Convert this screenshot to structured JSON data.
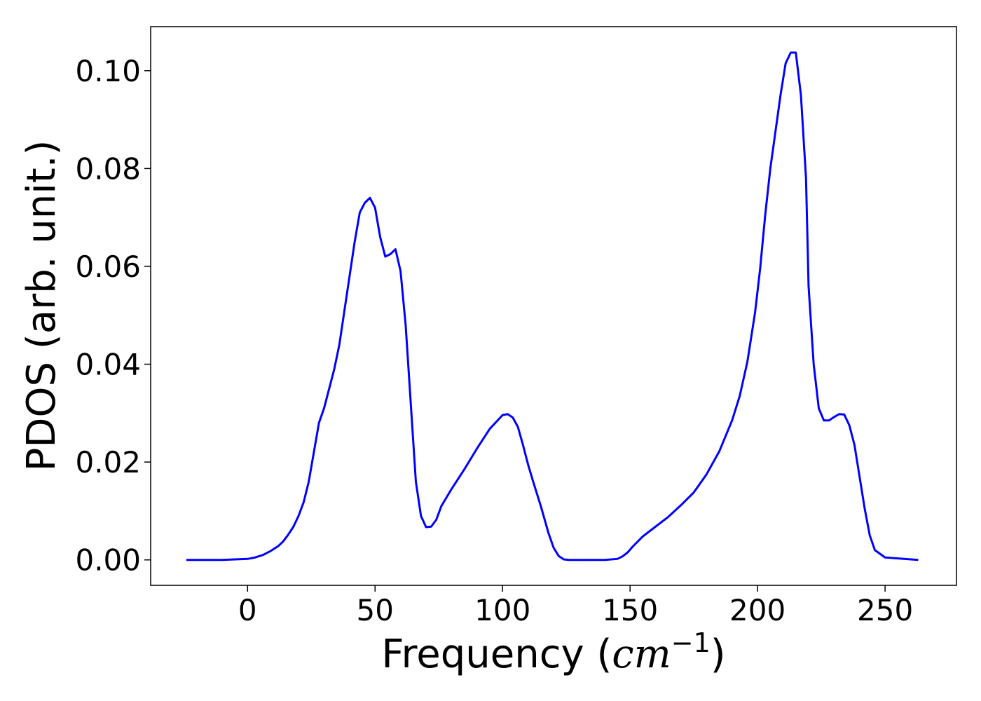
{
  "chart_data": {
    "type": "line",
    "xlabel": {
      "prefix": "Frequency (",
      "unit_base": "cm",
      "unit_exp": "−1",
      "suffix": ")"
    },
    "ylabel": "PDOS (arb. unit.)",
    "xlim": [
      -38,
      278
    ],
    "ylim": [
      -0.0052,
      0.109
    ],
    "x_ticks": [
      0,
      50,
      100,
      150,
      200,
      250
    ],
    "x_tick_labels": [
      "0",
      "50",
      "100",
      "150",
      "200",
      "250"
    ],
    "y_ticks": [
      0,
      0.02,
      0.04,
      0.06,
      0.08,
      0.1
    ],
    "y_tick_labels": [
      "0.00",
      "0.02",
      "0.04",
      "0.06",
      "0.08",
      "0.10"
    ],
    "grid": false,
    "series": [
      {
        "color": "#0000ff",
        "x": [
          -24,
          -10,
          0,
          3,
          6,
          9,
          12,
          14,
          16,
          18,
          20,
          22,
          24,
          26,
          28,
          30,
          32,
          34,
          36,
          38,
          40,
          42,
          44,
          46,
          48,
          50,
          52,
          54,
          56,
          58,
          60,
          62,
          64,
          66,
          68,
          70,
          72,
          74,
          76,
          80,
          85,
          90,
          95,
          100,
          102,
          104,
          106,
          108,
          110,
          112,
          115,
          118,
          120,
          122,
          124,
          126,
          130,
          140,
          145,
          147,
          149,
          151,
          155,
          160,
          165,
          170,
          175,
          180,
          185,
          190,
          193,
          196,
          199,
          201,
          203,
          205,
          207,
          209,
          211,
          213,
          215,
          217,
          219,
          220,
          222,
          224,
          226,
          228,
          230,
          232,
          234,
          236,
          238,
          240,
          242,
          244,
          246,
          250,
          263
        ],
        "y": [
          0.0,
          0.0,
          0.0002,
          0.0005,
          0.001,
          0.0018,
          0.0028,
          0.0038,
          0.0052,
          0.0068,
          0.009,
          0.0118,
          0.016,
          0.022,
          0.028,
          0.031,
          0.035,
          0.039,
          0.044,
          0.051,
          0.058,
          0.065,
          0.071,
          0.073,
          0.074,
          0.072,
          0.066,
          0.062,
          0.0625,
          0.0635,
          0.059,
          0.048,
          0.032,
          0.016,
          0.009,
          0.0067,
          0.0068,
          0.0082,
          0.011,
          0.0145,
          0.0185,
          0.0228,
          0.0268,
          0.0296,
          0.0298,
          0.0291,
          0.0272,
          0.0235,
          0.0195,
          0.016,
          0.011,
          0.0055,
          0.0025,
          0.0008,
          0.0001,
          0.0,
          0.0,
          0.0,
          0.0002,
          0.0007,
          0.0015,
          0.0027,
          0.0048,
          0.0068,
          0.0088,
          0.0112,
          0.0138,
          0.0175,
          0.0222,
          0.0285,
          0.0335,
          0.0405,
          0.0505,
          0.0595,
          0.0705,
          0.08,
          0.0875,
          0.095,
          0.1015,
          0.1037,
          0.1037,
          0.095,
          0.078,
          0.056,
          0.04,
          0.031,
          0.0285,
          0.0285,
          0.0292,
          0.0298,
          0.0297,
          0.0275,
          0.0235,
          0.017,
          0.0105,
          0.005,
          0.002,
          0.0005,
          0.0
        ]
      }
    ]
  }
}
